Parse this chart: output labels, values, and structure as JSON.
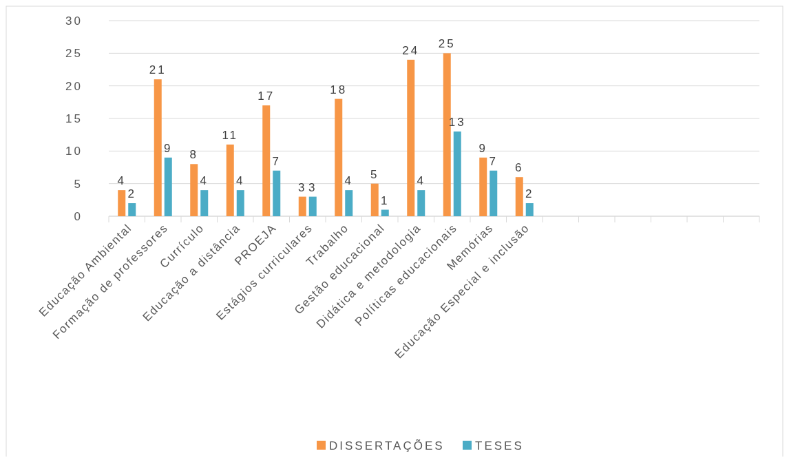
{
  "chart_data": {
    "type": "bar",
    "categories": [
      "Educação Ambiental",
      "Formação de professores",
      "Currículo",
      "Educação a distância",
      "PROEJA",
      "Estágios curriculares",
      "Trabalho",
      "Gestão educacional",
      "Didática e metodologia",
      "Políticas educacionais",
      "Memórias",
      "Educação Especial e inclusão",
      null,
      null,
      null,
      null,
      null,
      null
    ],
    "series": [
      {
        "name": "DISSERTAÇÕES",
        "color": "#f79646",
        "values": [
          4,
          21,
          8,
          11,
          17,
          3,
          18,
          5,
          24,
          25,
          9,
          6,
          null,
          null,
          null,
          null,
          null,
          null
        ]
      },
      {
        "name": "TESES",
        "color": "#4bacc6",
        "values": [
          2,
          9,
          4,
          4,
          7,
          3,
          4,
          1,
          4,
          13,
          7,
          2,
          null,
          null,
          null,
          null,
          null,
          null
        ]
      }
    ],
    "ylim": [
      0,
      30
    ],
    "yticks": [
      0,
      5,
      10,
      15,
      20,
      25,
      30
    ],
    "grid": "y",
    "legend": "bottom",
    "data_labels": true
  }
}
